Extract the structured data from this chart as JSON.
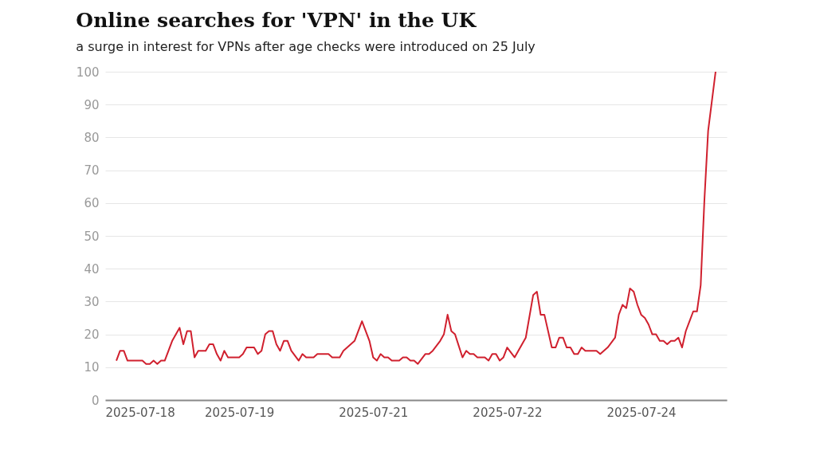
{
  "chart_data": {
    "type": "line",
    "title": "Online searches for 'VPN' in the UK",
    "subtitle": "a surge in interest for VPNs after age checks were introduced on 25 July",
    "x": [
      "2025-07-18T03:00",
      "2025-07-18T04:00",
      "2025-07-18T05:00",
      "2025-07-18T06:00",
      "2025-07-18T10:00",
      "2025-07-18T11:00",
      "2025-07-18T12:00",
      "2025-07-18T13:00",
      "2025-07-18T14:00",
      "2025-07-18T15:00",
      "2025-07-18T16:00",
      "2025-07-18T18:00",
      "2025-07-18T20:00",
      "2025-07-18T21:00",
      "2025-07-18T22:00",
      "2025-07-18T23:00",
      "2025-07-19T00:00",
      "2025-07-19T01:00",
      "2025-07-19T03:00",
      "2025-07-19T04:00",
      "2025-07-19T05:00",
      "2025-07-19T06:00",
      "2025-07-19T07:00",
      "2025-07-19T08:00",
      "2025-07-19T09:00",
      "2025-07-19T12:00",
      "2025-07-19T13:00",
      "2025-07-19T14:00",
      "2025-07-19T16:00",
      "2025-07-19T17:00",
      "2025-07-19T18:00",
      "2025-07-19T19:00",
      "2025-07-19T20:00",
      "2025-07-19T21:00",
      "2025-07-19T22:00",
      "2025-07-19T23:00",
      "2025-07-20T00:00",
      "2025-07-20T01:00",
      "2025-07-20T02:00",
      "2025-07-20T04:00",
      "2025-07-20T05:00",
      "2025-07-20T06:00",
      "2025-07-20T08:00",
      "2025-07-20T09:00",
      "2025-07-20T12:00",
      "2025-07-20T13:00",
      "2025-07-20T15:00",
      "2025-07-20T16:00",
      "2025-07-20T19:00",
      "2025-07-20T21:00",
      "2025-07-20T23:00",
      "2025-07-21T00:00",
      "2025-07-21T01:00",
      "2025-07-21T02:00",
      "2025-07-21T03:00",
      "2025-07-21T04:00",
      "2025-07-21T05:00",
      "2025-07-21T07:00",
      "2025-07-21T08:00",
      "2025-07-21T09:00",
      "2025-07-21T10:00",
      "2025-07-21T11:00",
      "2025-07-21T12:00",
      "2025-07-21T14:00",
      "2025-07-21T15:00",
      "2025-07-21T16:00",
      "2025-07-21T18:00",
      "2025-07-21T19:00",
      "2025-07-21T20:00",
      "2025-07-21T21:00",
      "2025-07-21T22:00",
      "2025-07-22T00:00",
      "2025-07-22T01:00",
      "2025-07-22T02:00",
      "2025-07-22T03:00",
      "2025-07-22T04:00",
      "2025-07-22T06:00",
      "2025-07-22T07:00",
      "2025-07-22T08:00",
      "2025-07-22T09:00",
      "2025-07-22T10:00",
      "2025-07-22T11:00",
      "2025-07-22T12:00",
      "2025-07-22T14:00",
      "2025-07-22T15:00",
      "2025-07-22T17:00",
      "2025-07-22T19:00",
      "2025-07-22T20:00",
      "2025-07-22T21:00",
      "2025-07-22T22:00",
      "2025-07-23T00:00",
      "2025-07-23T01:00",
      "2025-07-23T02:00",
      "2025-07-23T03:00",
      "2025-07-23T04:00",
      "2025-07-23T05:00",
      "2025-07-23T06:00",
      "2025-07-23T07:00",
      "2025-07-23T08:00",
      "2025-07-23T09:00",
      "2025-07-23T12:00",
      "2025-07-23T13:00",
      "2025-07-23T15:00",
      "2025-07-23T17:00",
      "2025-07-23T18:00",
      "2025-07-23T19:00",
      "2025-07-23T20:00",
      "2025-07-23T21:00",
      "2025-07-23T22:00",
      "2025-07-23T23:00",
      "2025-07-24T00:00",
      "2025-07-24T01:00",
      "2025-07-24T02:00",
      "2025-07-24T03:00",
      "2025-07-24T04:00",
      "2025-07-24T05:00",
      "2025-07-24T06:00",
      "2025-07-24T07:00",
      "2025-07-24T08:00",
      "2025-07-24T09:00",
      "2025-07-24T10:00",
      "2025-07-24T11:00",
      "2025-07-24T12:00",
      "2025-07-24T13:00",
      "2025-07-24T14:00",
      "2025-07-24T15:00",
      "2025-07-24T16:00",
      "2025-07-24T17:00",
      "2025-07-24T18:00",
      "2025-07-24T19:00",
      "2025-07-24T20:00"
    ],
    "series": [
      {
        "color": "#d0202e",
        "values": [
          12,
          15,
          15,
          12,
          12,
          11,
          11,
          12,
          11,
          12,
          12,
          18,
          22,
          17,
          21,
          21,
          13,
          15,
          15,
          17,
          17,
          14,
          12,
          15,
          13,
          13,
          14,
          16,
          16,
          14,
          15,
          20,
          21,
          21,
          17,
          15,
          18,
          18,
          15,
          12,
          14,
          13,
          13,
          14,
          14,
          13,
          13,
          15,
          18,
          24,
          18,
          13,
          12,
          14,
          13,
          13,
          12,
          12,
          13,
          13,
          12,
          12,
          11,
          14,
          14,
          15,
          18,
          20,
          26,
          21,
          20,
          13,
          15,
          14,
          14,
          13,
          13,
          12,
          14,
          14,
          12,
          13,
          16,
          13,
          15,
          19,
          32,
          33,
          26,
          26,
          16,
          16,
          19,
          19,
          16,
          16,
          14,
          14,
          16,
          15,
          15,
          14,
          16,
          19,
          26,
          29,
          28,
          34,
          33,
          29,
          26,
          25,
          23,
          20,
          20,
          18,
          18,
          17,
          18,
          18,
          19,
          16,
          21,
          24,
          27,
          27,
          35,
          61,
          82,
          91,
          100
        ]
      }
    ],
    "xlim": [
      "2025-07-18T00:00",
      "2025-07-24T23:00"
    ],
    "xticks": [
      {
        "value": "2025-07-18T00:00",
        "label": "2025-07-18"
      },
      {
        "value": "2025-07-19T12:00",
        "label": "2025-07-19"
      },
      {
        "value": "2025-07-21T00:00",
        "label": "2025-07-21"
      },
      {
        "value": "2025-07-22T12:00",
        "label": "2025-07-22"
      },
      {
        "value": "2025-07-24T00:00",
        "label": "2025-07-24"
      }
    ],
    "ylim": [
      0,
      100
    ],
    "yticks": [
      0,
      10,
      20,
      30,
      40,
      50,
      60,
      70,
      80,
      90,
      100
    ],
    "grid": "y",
    "marker": "none",
    "line_style": "solid"
  }
}
